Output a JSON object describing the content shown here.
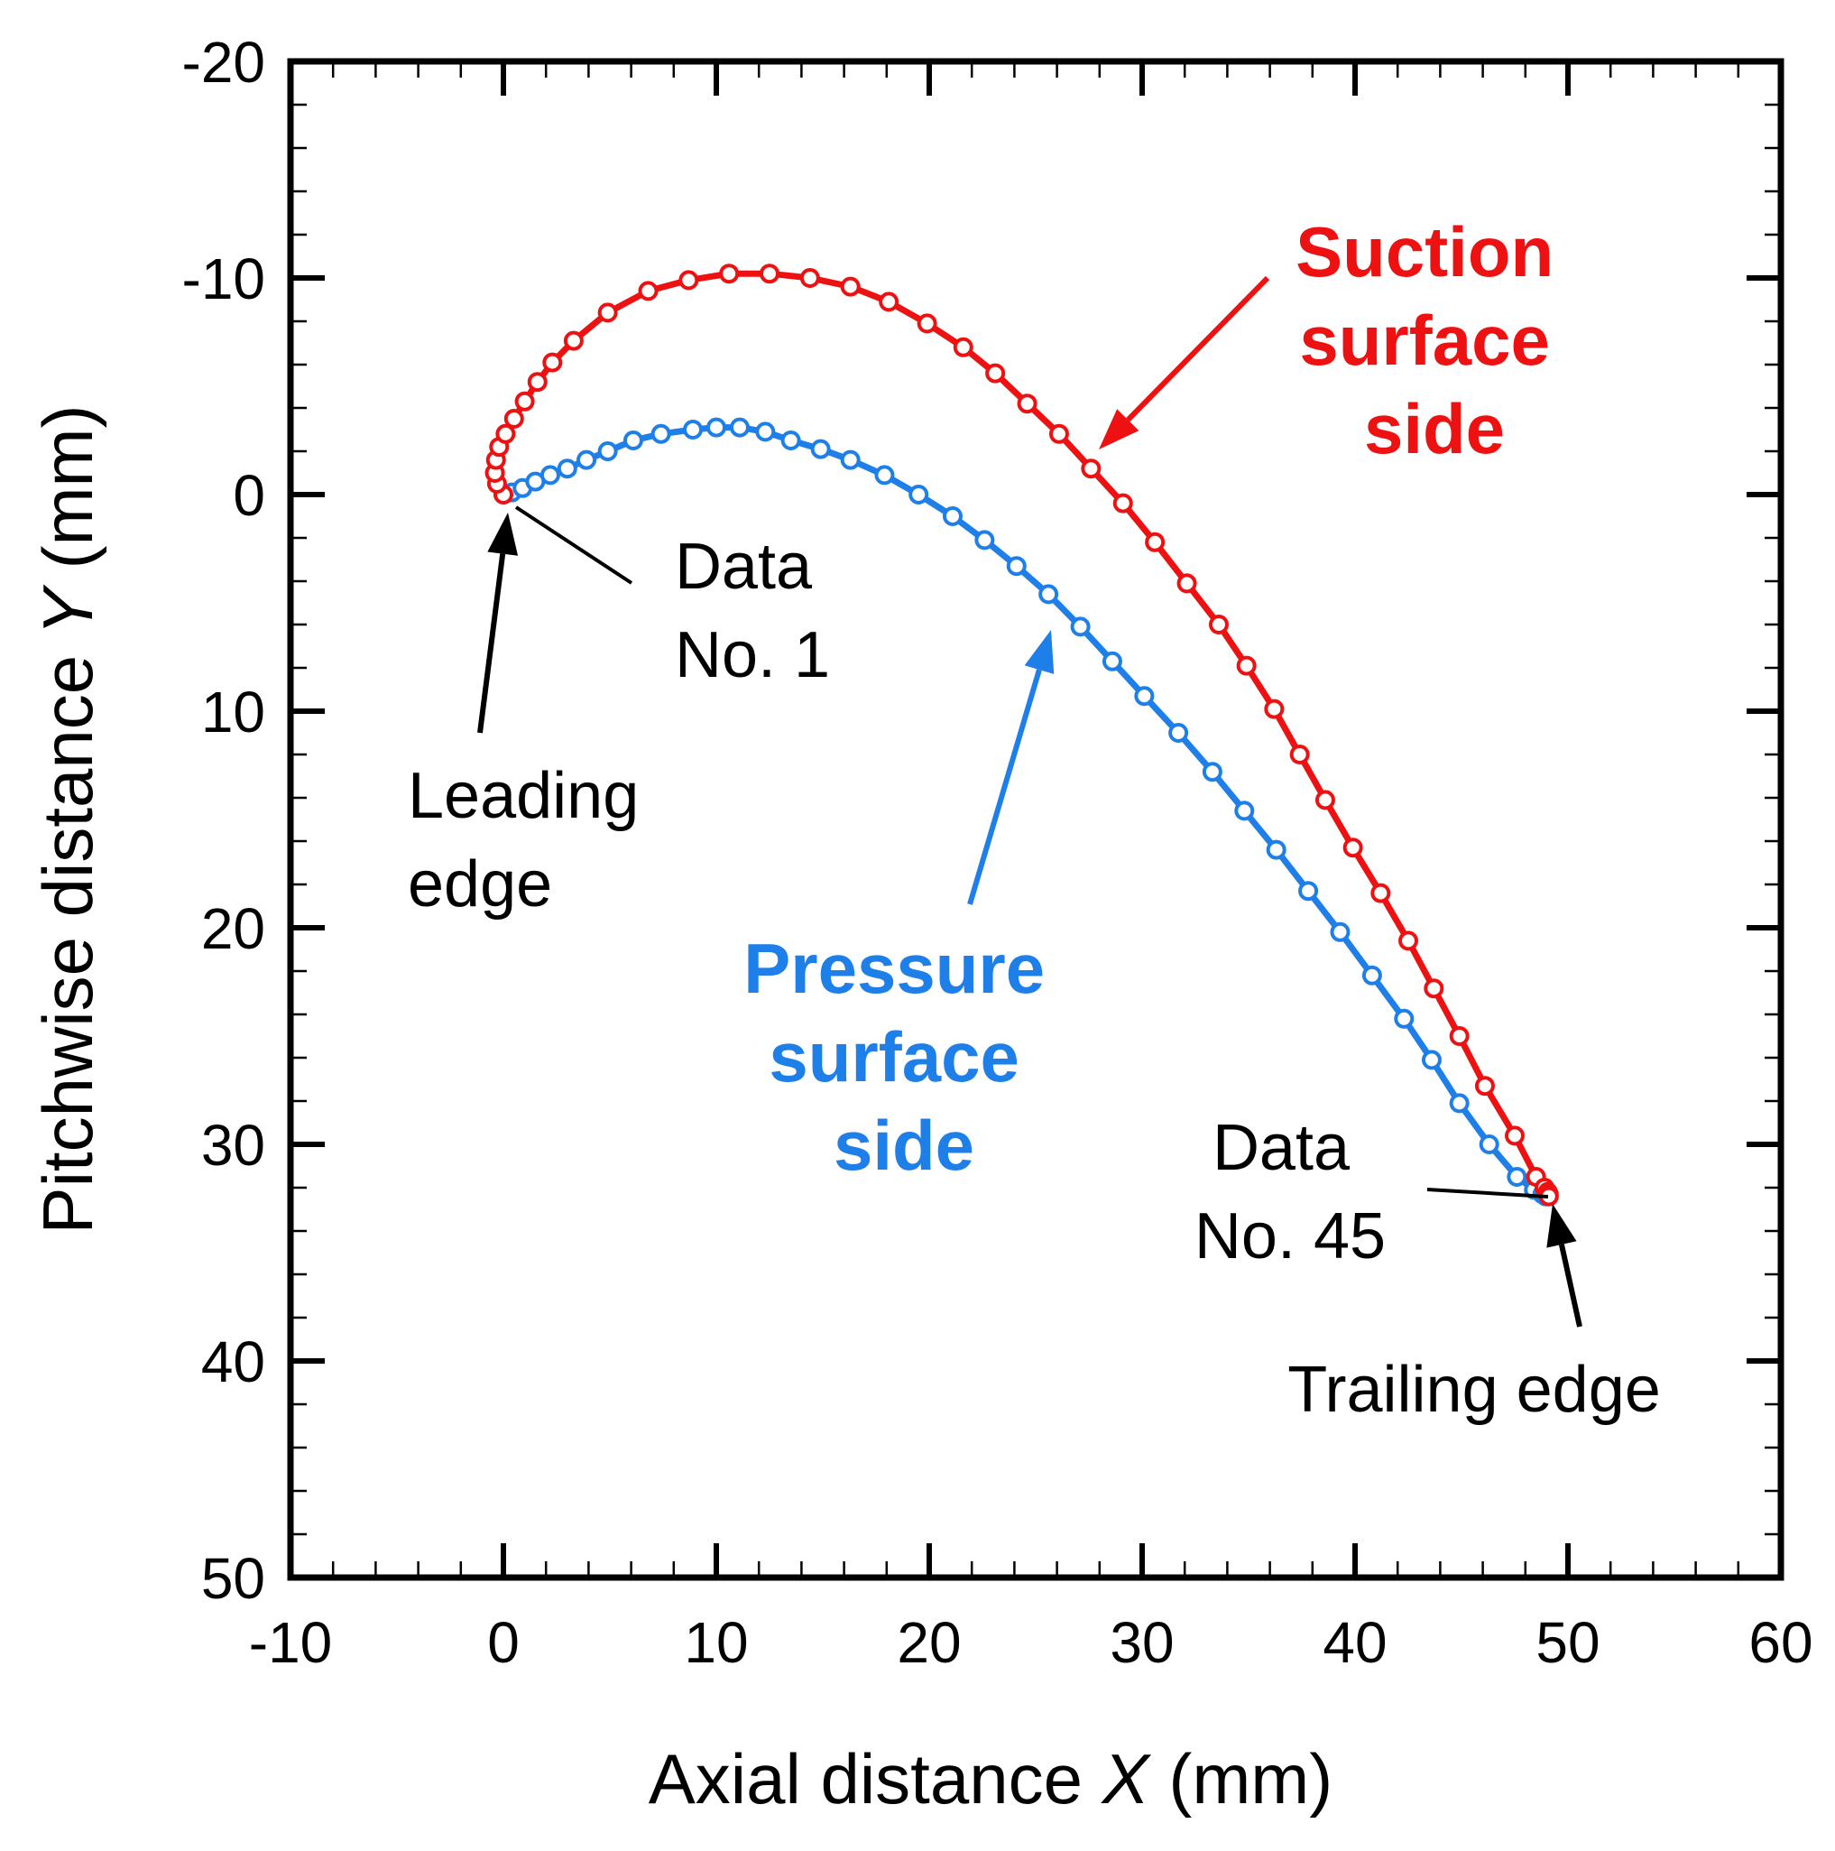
{
  "chart_data": {
    "type": "scatter",
    "xlabel": "Axial distance X (mm)",
    "xlabel_parts": [
      "Axial distance ",
      "X",
      " (mm)"
    ],
    "ylabel": "Pitchwise distance Y (mm)",
    "ylabel_parts": [
      "Pitchwise distance ",
      "Y",
      " (mm)"
    ],
    "xlim": [
      -10,
      60
    ],
    "ylim": [
      -20,
      50
    ],
    "y_inverted": true,
    "xticks": [
      -10,
      0,
      10,
      20,
      30,
      40,
      50,
      60
    ],
    "yticks": [
      -20,
      -10,
      0,
      10,
      20,
      30,
      40,
      50
    ],
    "xtick_labels": [
      "-10",
      "0",
      "10",
      "20",
      "30",
      "40",
      "50",
      "60"
    ],
    "ytick_labels": [
      "-20",
      "-10",
      "0",
      "10",
      "20",
      "30",
      "40",
      "50"
    ],
    "grid": false,
    "series": [
      {
        "name": "Suction surface side",
        "color": "#ee1111",
        "x": [
          0,
          -0.3,
          -0.4,
          -0.35,
          -0.2,
          0.1,
          0.5,
          1.0,
          1.6,
          2.3,
          3.3,
          4.9,
          6.8,
          8.7,
          10.6,
          12.5,
          14.4,
          16.3,
          18.1,
          19.9,
          21.6,
          23.1,
          24.6,
          26.1,
          27.6,
          29.1,
          30.6,
          32.1,
          33.6,
          34.9,
          36.2,
          37.4,
          38.6,
          39.9,
          41.2,
          42.5,
          43.7,
          44.9,
          46.1,
          47.5,
          48.5,
          48.9,
          49.05,
          49.1,
          49.1
        ],
        "y": [
          0,
          -0.5,
          -1.0,
          -1.6,
          -2.2,
          -2.8,
          -3.5,
          -4.3,
          -5.2,
          -6.1,
          -7.1,
          -8.4,
          -9.4,
          -9.9,
          -10.2,
          -10.2,
          -10.0,
          -9.6,
          -8.9,
          -7.9,
          -6.8,
          -5.6,
          -4.2,
          -2.8,
          -1.2,
          0.4,
          2.2,
          4.1,
          6.0,
          7.9,
          9.9,
          12.0,
          14.1,
          16.3,
          18.4,
          20.6,
          22.8,
          25.0,
          27.3,
          29.6,
          31.5,
          32.0,
          32.2,
          32.3,
          32.4
        ]
      },
      {
        "name": "Pressure surface side",
        "color": "#1e7fe8",
        "x": [
          0,
          0.4,
          0.9,
          1.5,
          2.2,
          3.0,
          3.9,
          4.9,
          6.1,
          7.4,
          8.9,
          10.0,
          11.1,
          12.3,
          13.5,
          14.9,
          16.3,
          17.9,
          19.5,
          21.1,
          22.6,
          24.1,
          25.6,
          27.1,
          28.6,
          30.1,
          31.7,
          33.3,
          34.8,
          36.3,
          37.8,
          39.3,
          40.8,
          42.3,
          43.6,
          44.9,
          46.3,
          47.6,
          48.4,
          48.8,
          48.95,
          49.0,
          49.05,
          49.08,
          49.1
        ],
        "y": [
          0,
          -0.1,
          -0.3,
          -0.6,
          -0.9,
          -1.2,
          -1.6,
          -2.0,
          -2.5,
          -2.8,
          -3.0,
          -3.1,
          -3.1,
          -2.9,
          -2.5,
          -2.1,
          -1.6,
          -0.9,
          0,
          1.0,
          2.1,
          3.3,
          4.6,
          6.1,
          7.7,
          9.3,
          11.0,
          12.8,
          14.6,
          16.4,
          18.3,
          20.2,
          22.2,
          24.2,
          26.1,
          28.1,
          30.0,
          31.5,
          32.1,
          32.3,
          32.4,
          32.4,
          32.4,
          32.4,
          32.4
        ]
      }
    ],
    "annotations": {
      "suction": [
        "Suction",
        "surface",
        "side"
      ],
      "pressure": [
        "Pressure",
        "surface",
        "side"
      ],
      "data1": [
        "Data",
        "No. 1"
      ],
      "data45": [
        "Data",
        "No. 45"
      ],
      "leading": [
        "Leading",
        "edge"
      ],
      "trailing": "Trailing edge"
    }
  }
}
